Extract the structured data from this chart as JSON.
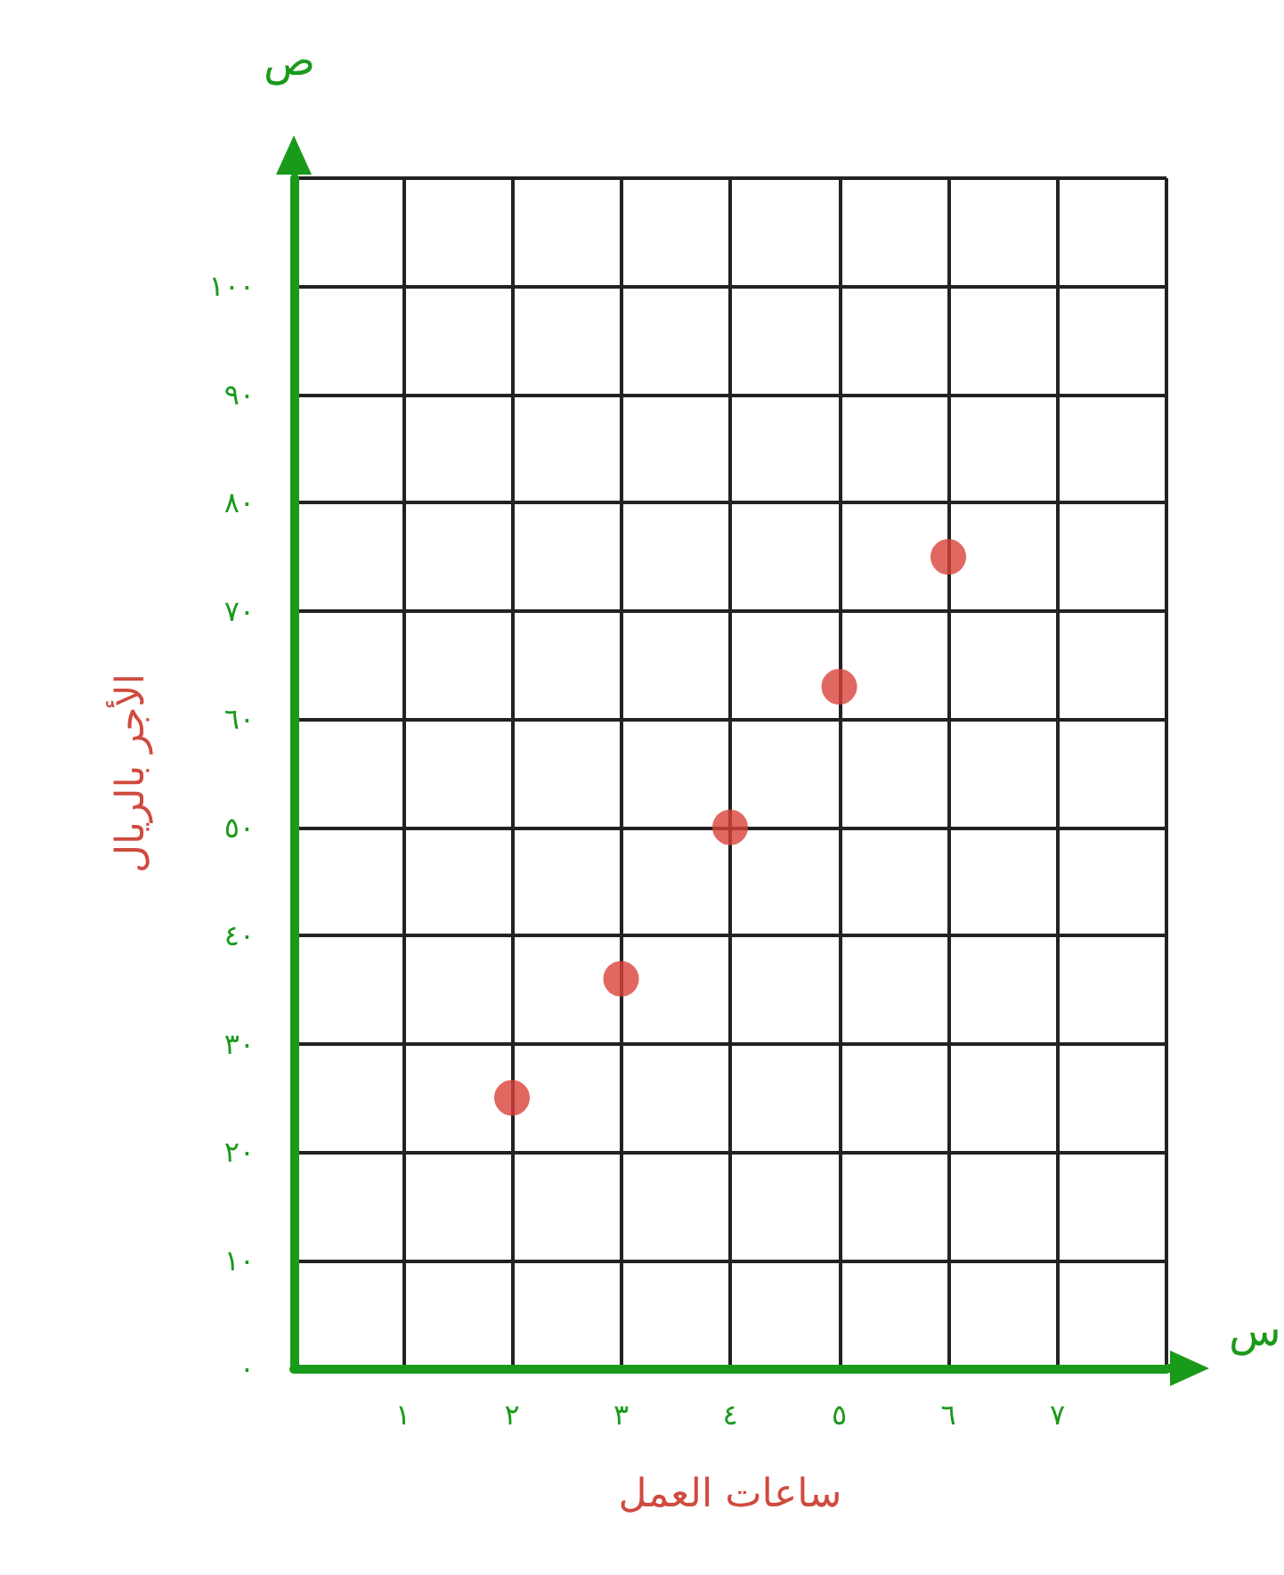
{
  "chart_data": {
    "type": "scatter",
    "xlabel": "ساعات العمل",
    "ylabel": "الأجر بالريال",
    "annotations": [
      "ص",
      "س"
    ],
    "x": [
      2,
      3,
      4,
      5,
      6
    ],
    "series": [
      {
        "color": "#d9423a",
        "values": [
          25,
          36,
          50,
          63,
          75
        ]
      }
    ],
    "xlim": [
      0,
      8
    ],
    "xticks": [
      {
        "value": 0,
        "label": null
      },
      {
        "value": 1,
        "label": "١"
      },
      {
        "value": 2,
        "label": "٢"
      },
      {
        "value": 3,
        "label": "٣"
      },
      {
        "value": 4,
        "label": "٤"
      },
      {
        "value": 5,
        "label": "٥"
      },
      {
        "value": 6,
        "label": "٦"
      },
      {
        "value": 7,
        "label": "٧"
      },
      {
        "value": 8,
        "label": null
      }
    ],
    "ylim": [
      0,
      110
    ],
    "yticks": [
      {
        "value": 0,
        "label": "٠"
      },
      {
        "value": 10,
        "label": "١٠"
      },
      {
        "value": 20,
        "label": "٢٠"
      },
      {
        "value": 30,
        "label": "٣٠"
      },
      {
        "value": 40,
        "label": "٤٠"
      },
      {
        "value": 50,
        "label": "٥٠"
      },
      {
        "value": 60,
        "label": "٦٠"
      },
      {
        "value": 70,
        "label": "٧٠"
      },
      {
        "value": 80,
        "label": "٨٠"
      },
      {
        "value": 90,
        "label": "٩٠"
      },
      {
        "value": 100,
        "label": "١٠٠"
      },
      {
        "value": 110,
        "label": null
      }
    ],
    "grid": true,
    "marker": "circle"
  }
}
